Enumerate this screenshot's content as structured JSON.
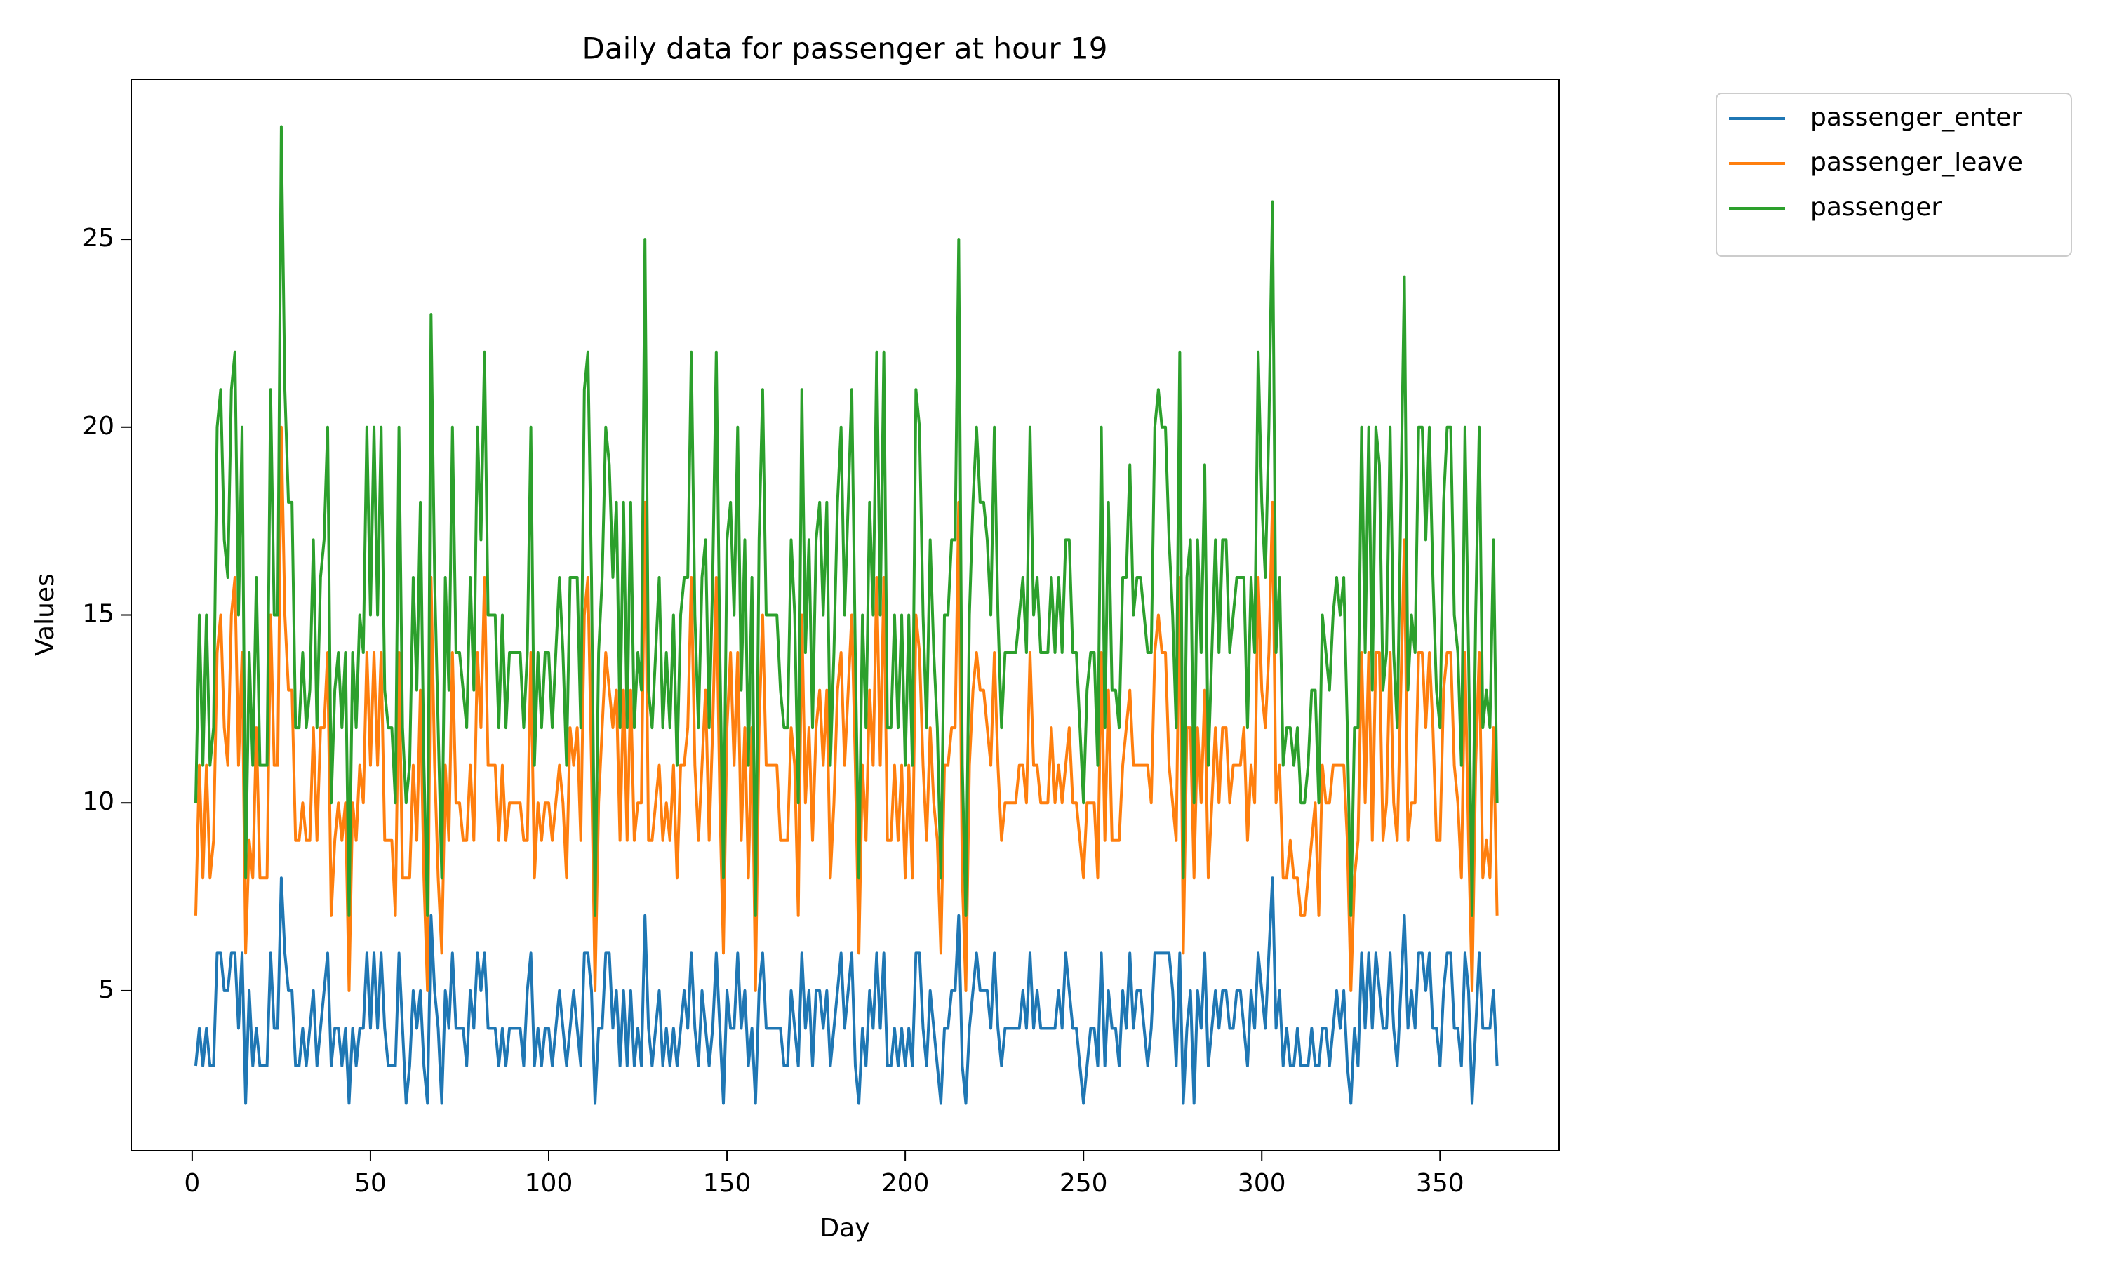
{
  "chart_data": {
    "type": "line",
    "title": "Daily data for passenger at hour 19",
    "x_label": "Day",
    "y_label": "Values",
    "x": [
      1,
      2,
      3,
      4,
      5,
      6,
      7,
      8,
      9,
      10,
      11,
      12,
      13,
      14,
      15,
      16,
      17,
      18,
      19,
      20,
      21,
      22,
      23,
      24,
      25,
      26,
      27,
      28,
      29,
      30,
      31,
      32,
      33,
      34,
      35,
      36,
      37,
      38,
      39,
      40,
      41,
      42,
      43,
      44,
      45,
      46,
      47,
      48,
      49,
      50,
      51,
      52,
      53,
      54,
      55,
      56,
      57,
      58,
      59,
      60,
      61,
      62,
      63,
      64,
      65,
      66,
      67,
      68,
      69,
      70,
      71,
      72,
      73,
      74,
      75,
      76,
      77,
      78,
      79,
      80,
      81,
      82,
      83,
      84,
      85,
      86,
      87,
      88,
      89,
      90,
      91,
      92,
      93,
      94,
      95,
      96,
      97,
      98,
      99,
      100,
      101,
      102,
      103,
      104,
      105,
      106,
      107,
      108,
      109,
      110,
      111,
      112,
      113,
      114,
      115,
      116,
      117,
      118,
      119,
      120,
      121,
      122,
      123,
      124,
      125,
      126,
      127,
      128,
      129,
      130,
      131,
      132,
      133,
      134,
      135,
      136,
      137,
      138,
      139,
      140,
      141,
      142,
      143,
      144,
      145,
      146,
      147,
      148,
      149,
      150,
      151,
      152,
      153,
      154,
      155,
      156,
      157,
      158,
      159,
      160,
      161,
      162,
      163,
      164,
      165,
      166,
      167,
      168,
      169,
      170,
      171,
      172,
      173,
      174,
      175,
      176,
      177,
      178,
      179,
      180,
      181,
      182,
      183,
      184,
      185,
      186,
      187,
      188,
      189,
      190,
      191,
      192,
      193,
      194,
      195,
      196,
      197,
      198,
      199,
      200,
      201,
      202,
      203,
      204,
      205,
      206,
      207,
      208,
      209,
      210,
      211,
      212,
      213,
      214,
      215,
      216,
      217,
      218,
      219,
      220,
      221,
      222,
      223,
      224,
      225,
      226,
      227,
      228,
      229,
      230,
      231,
      232,
      233,
      234,
      235,
      236,
      237,
      238,
      239,
      240,
      241,
      242,
      243,
      244,
      245,
      246,
      247,
      248,
      249,
      250,
      251,
      252,
      253,
      254,
      255,
      256,
      257,
      258,
      259,
      260,
      261,
      262,
      263,
      264,
      265,
      266,
      267,
      268,
      269,
      270,
      271,
      272,
      273,
      274,
      275,
      276,
      277,
      278,
      279,
      280,
      281,
      282,
      283,
      284,
      285,
      286,
      287,
      288,
      289,
      290,
      291,
      292,
      293,
      294,
      295,
      296,
      297,
      298,
      299,
      300,
      301,
      302,
      303,
      304,
      305,
      306,
      307,
      308,
      309,
      310,
      311,
      312,
      313,
      314,
      315,
      316,
      317,
      318,
      319,
      320,
      321,
      322,
      323,
      324,
      325,
      326,
      327,
      328,
      329,
      330,
      331,
      332,
      333,
      334,
      335,
      336,
      337,
      338,
      339,
      340,
      341,
      342,
      343,
      344,
      345,
      346,
      347,
      348,
      349,
      350,
      351,
      352,
      353,
      354,
      355,
      356,
      357,
      358,
      359,
      360,
      361,
      362,
      363,
      364,
      365,
      366
    ],
    "series": [
      {
        "name": "passenger_enter",
        "color": "#1f77b4",
        "values": [
          3,
          4,
          3,
          4,
          3,
          3,
          6,
          6,
          5,
          5,
          6,
          6,
          4,
          6,
          2,
          5,
          3,
          4,
          3,
          3,
          3,
          6,
          4,
          4,
          8,
          6,
          5,
          5,
          3,
          3,
          4,
          3,
          4,
          5,
          3,
          4,
          5,
          6,
          3,
          4,
          4,
          3,
          4,
          2,
          4,
          3,
          4,
          4,
          6,
          4,
          6,
          4,
          6,
          4,
          3,
          3,
          3,
          6,
          4,
          2,
          3,
          5,
          4,
          5,
          3,
          2,
          7,
          5,
          4,
          2,
          5,
          4,
          6,
          4,
          4,
          4,
          3,
          5,
          4,
          6,
          5,
          6,
          4,
          4,
          4,
          3,
          4,
          3,
          4,
          4,
          4,
          4,
          3,
          5,
          6,
          3,
          4,
          3,
          4,
          4,
          3,
          4,
          5,
          4,
          3,
          4,
          5,
          4,
          3,
          6,
          6,
          5,
          2,
          4,
          4,
          6,
          6,
          4,
          5,
          3,
          5,
          3,
          5,
          3,
          4,
          3,
          7,
          4,
          3,
          4,
          5,
          3,
          4,
          3,
          4,
          3,
          4,
          5,
          4,
          6,
          4,
          3,
          5,
          4,
          3,
          4,
          6,
          4,
          2,
          5,
          4,
          4,
          6,
          4,
          5,
          3,
          4,
          2,
          5,
          6,
          4,
          4,
          4,
          4,
          4,
          3,
          3,
          5,
          4,
          3,
          6,
          4,
          5,
          3,
          5,
          5,
          4,
          5,
          3,
          4,
          5,
          6,
          4,
          5,
          6,
          3,
          2,
          4,
          3,
          5,
          4,
          6,
          4,
          6,
          3,
          3,
          4,
          3,
          4,
          3,
          4,
          3,
          6,
          6,
          4,
          3,
          5,
          4,
          3,
          2,
          4,
          4,
          5,
          5,
          7,
          3,
          2,
          4,
          5,
          6,
          5,
          5,
          5,
          4,
          6,
          4,
          3,
          4,
          4,
          4,
          4,
          4,
          5,
          4,
          6,
          4,
          5,
          4,
          4,
          4,
          4,
          4,
          5,
          4,
          6,
          5,
          4,
          4,
          3,
          2,
          3,
          4,
          4,
          3,
          6,
          3,
          5,
          4,
          4,
          3,
          5,
          4,
          6,
          4,
          5,
          5,
          4,
          3,
          4,
          6,
          6,
          6,
          6,
          6,
          5,
          3,
          6,
          2,
          4,
          5,
          2,
          5,
          4,
          6,
          3,
          4,
          5,
          4,
          5,
          5,
          4,
          4,
          5,
          5,
          4,
          3,
          5,
          4,
          6,
          5,
          4,
          6,
          8,
          4,
          5,
          3,
          4,
          3,
          3,
          4,
          3,
          3,
          3,
          4,
          3,
          3,
          4,
          4,
          3,
          4,
          5,
          4,
          5,
          3,
          2,
          4,
          3,
          6,
          4,
          6,
          4,
          6,
          5,
          4,
          4,
          6,
          4,
          3,
          5,
          7,
          4,
          5,
          4,
          6,
          6,
          5,
          6,
          4,
          4,
          3,
          5,
          6,
          6,
          4,
          4,
          3,
          6,
          5,
          2,
          4,
          6,
          4,
          4,
          4,
          5,
          3
        ]
      },
      {
        "name": "passenger_leave",
        "color": "#ff7f0e",
        "values": [
          7,
          11,
          8,
          11,
          8,
          9,
          14,
          15,
          12,
          11,
          15,
          16,
          11,
          14,
          6,
          9,
          8,
          12,
          8,
          8,
          8,
          15,
          11,
          11,
          20,
          15,
          13,
          13,
          9,
          9,
          10,
          9,
          9,
          12,
          9,
          12,
          12,
          14,
          7,
          9,
          10,
          9,
          10,
          5,
          10,
          9,
          11,
          10,
          14,
          11,
          14,
          11,
          14,
          9,
          9,
          9,
          7,
          14,
          8,
          8,
          8,
          11,
          9,
          13,
          8,
          5,
          16,
          11,
          8,
          6,
          11,
          9,
          14,
          10,
          10,
          9,
          9,
          11,
          9,
          14,
          12,
          16,
          11,
          11,
          11,
          9,
          11,
          9,
          10,
          10,
          10,
          10,
          9,
          9,
          14,
          8,
          10,
          9,
          10,
          10,
          9,
          10,
          11,
          10,
          8,
          12,
          11,
          12,
          9,
          15,
          16,
          11,
          5,
          10,
          12,
          14,
          13,
          12,
          13,
          9,
          13,
          9,
          13,
          9,
          10,
          10,
          18,
          9,
          9,
          10,
          11,
          9,
          10,
          9,
          11,
          8,
          11,
          11,
          12,
          16,
          11,
          9,
          11,
          13,
          9,
          12,
          16,
          10,
          6,
          12,
          14,
          11,
          14,
          9,
          12,
          8,
          12,
          5,
          12,
          15,
          11,
          11,
          11,
          11,
          9,
          9,
          9,
          12,
          11,
          7,
          15,
          10,
          12,
          9,
          12,
          13,
          11,
          13,
          8,
          10,
          13,
          14,
          11,
          13,
          15,
          11,
          6,
          11,
          9,
          13,
          11,
          16,
          11,
          16,
          9,
          9,
          11,
          9,
          11,
          8,
          11,
          8,
          15,
          14,
          11,
          9,
          12,
          10,
          9,
          6,
          11,
          11,
          12,
          12,
          18,
          8,
          5,
          11,
          13,
          14,
          13,
          13,
          12,
          11,
          14,
          11,
          9,
          10,
          10,
          10,
          10,
          11,
          11,
          10,
          14,
          11,
          11,
          10,
          10,
          10,
          12,
          10,
          11,
          10,
          11,
          12,
          10,
          10,
          9,
          8,
          10,
          10,
          10,
          8,
          14,
          9,
          13,
          9,
          9,
          9,
          11,
          12,
          13,
          11,
          11,
          11,
          11,
          11,
          10,
          14,
          15,
          14,
          14,
          11,
          10,
          9,
          16,
          6,
          12,
          12,
          8,
          12,
          10,
          13,
          8,
          10,
          12,
          10,
          12,
          12,
          10,
          11,
          11,
          11,
          12,
          9,
          11,
          10,
          16,
          13,
          12,
          14,
          18,
          10,
          11,
          8,
          8,
          9,
          8,
          8,
          7,
          7,
          8,
          9,
          10,
          7,
          11,
          10,
          10,
          11,
          11,
          11,
          11,
          9,
          5,
          8,
          9,
          14,
          10,
          14,
          9,
          14,
          14,
          9,
          10,
          14,
          10,
          9,
          13,
          17,
          9,
          10,
          10,
          14,
          14,
          12,
          14,
          12,
          9,
          9,
          13,
          14,
          14,
          11,
          10,
          8,
          14,
          9,
          5,
          11,
          14,
          8,
          9,
          8,
          12,
          7
        ]
      },
      {
        "name": "passenger",
        "color": "#2ca02c",
        "values": [
          10,
          15,
          11,
          15,
          11,
          12,
          20,
          21,
          17,
          16,
          21,
          22,
          15,
          20,
          8,
          14,
          11,
          16,
          11,
          11,
          11,
          21,
          15,
          15,
          28,
          21,
          18,
          18,
          12,
          12,
          14,
          12,
          13,
          17,
          12,
          16,
          17,
          20,
          10,
          13,
          14,
          12,
          14,
          7,
          14,
          12,
          15,
          14,
          20,
          15,
          20,
          15,
          20,
          13,
          12,
          12,
          10,
          20,
          12,
          10,
          11,
          16,
          13,
          18,
          11,
          7,
          23,
          16,
          12,
          8,
          16,
          13,
          20,
          14,
          14,
          13,
          12,
          16,
          13,
          20,
          17,
          22,
          15,
          15,
          15,
          12,
          15,
          12,
          14,
          14,
          14,
          14,
          12,
          14,
          20,
          11,
          14,
          12,
          14,
          14,
          12,
          14,
          16,
          14,
          11,
          16,
          16,
          16,
          12,
          21,
          22,
          16,
          7,
          14,
          16,
          20,
          19,
          16,
          18,
          12,
          18,
          12,
          18,
          12,
          14,
          13,
          25,
          13,
          12,
          14,
          16,
          12,
          14,
          12,
          15,
          11,
          15,
          16,
          16,
          22,
          15,
          12,
          16,
          17,
          12,
          16,
          22,
          14,
          8,
          17,
          18,
          15,
          20,
          13,
          17,
          11,
          16,
          7,
          17,
          21,
          15,
          15,
          15,
          15,
          13,
          12,
          12,
          17,
          15,
          10,
          21,
          14,
          17,
          12,
          17,
          18,
          15,
          18,
          11,
          14,
          18,
          20,
          15,
          18,
          21,
          14,
          8,
          15,
          12,
          18,
          15,
          22,
          15,
          22,
          12,
          12,
          15,
          12,
          15,
          11,
          15,
          11,
          21,
          20,
          15,
          12,
          17,
          14,
          12,
          8,
          15,
          15,
          17,
          17,
          25,
          11,
          7,
          15,
          18,
          20,
          18,
          18,
          17,
          15,
          20,
          15,
          12,
          14,
          14,
          14,
          14,
          15,
          16,
          14,
          20,
          15,
          16,
          14,
          14,
          14,
          16,
          14,
          16,
          14,
          17,
          17,
          14,
          14,
          12,
          10,
          13,
          14,
          14,
          11,
          20,
          12,
          18,
          13,
          13,
          12,
          16,
          16,
          19,
          15,
          16,
          16,
          15,
          14,
          14,
          20,
          21,
          20,
          20,
          17,
          15,
          12,
          22,
          8,
          16,
          17,
          10,
          17,
          14,
          19,
          11,
          14,
          17,
          14,
          17,
          17,
          14,
          15,
          16,
          16,
          16,
          12,
          16,
          14,
          22,
          18,
          16,
          20,
          26,
          14,
          16,
          11,
          12,
          12,
          11,
          12,
          10,
          10,
          11,
          13,
          13,
          10,
          15,
          14,
          13,
          15,
          16,
          15,
          16,
          12,
          7,
          12,
          12,
          20,
          14,
          20,
          13,
          20,
          19,
          13,
          14,
          20,
          14,
          12,
          18,
          24,
          13,
          15,
          14,
          20,
          20,
          17,
          20,
          16,
          13,
          12,
          18,
          20,
          20,
          15,
          14,
          11,
          20,
          14,
          7,
          15,
          20,
          12,
          13,
          12,
          17,
          10
        ]
      }
    ],
    "xlim": [
      -17.1,
      383.4
    ],
    "xticks": [
      0,
      50,
      100,
      150,
      200,
      250,
      300,
      350
    ],
    "ylim": [
      0.74,
      29.26
    ],
    "yticks": [
      5,
      10,
      15,
      20,
      25
    ],
    "legend": "outside upper right"
  }
}
